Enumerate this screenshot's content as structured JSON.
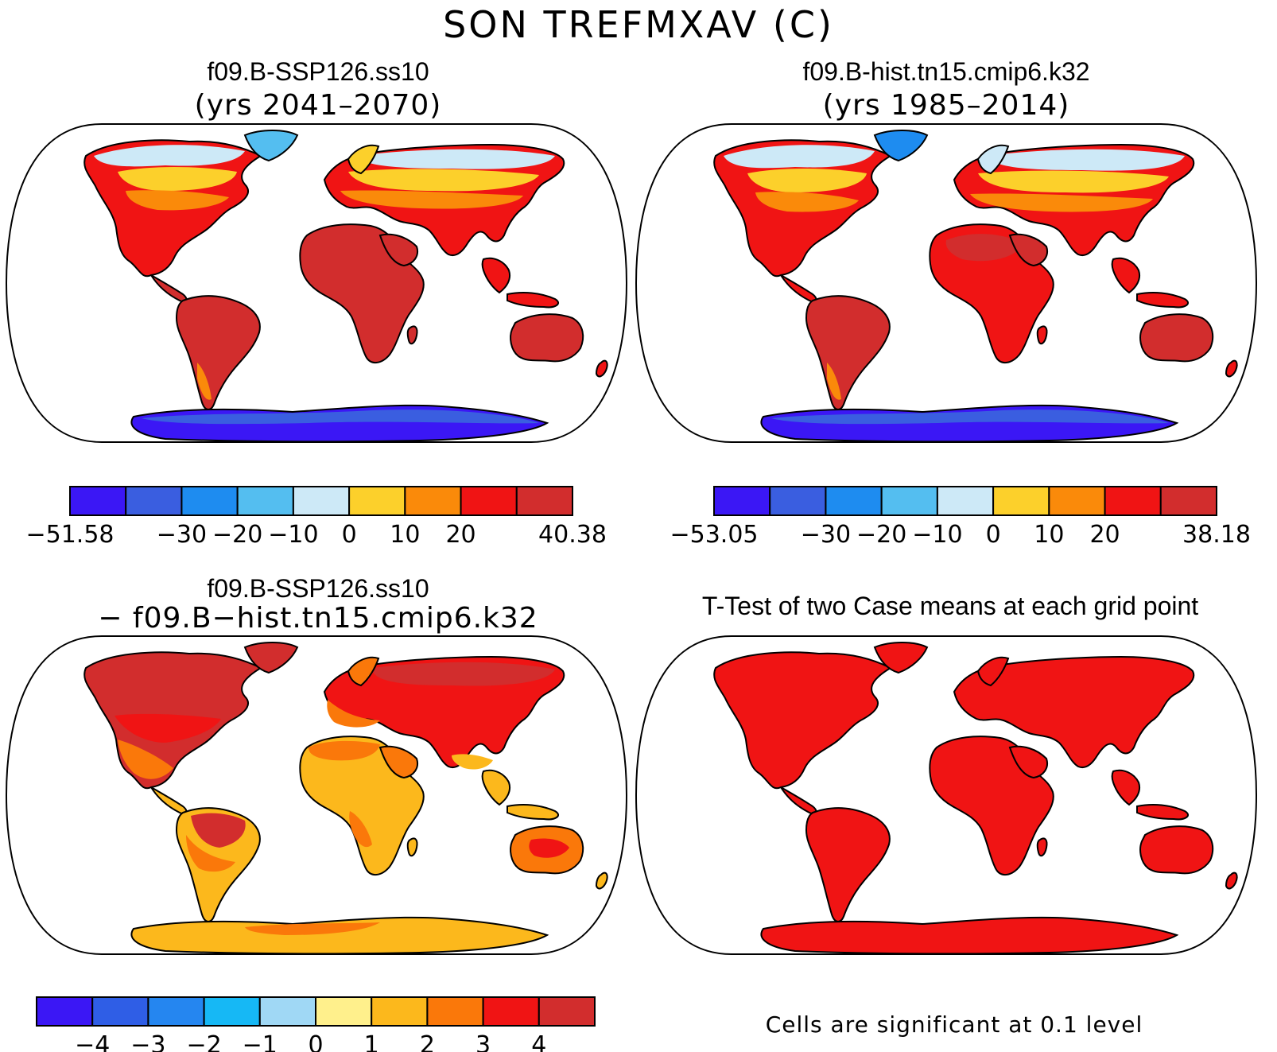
{
  "title": "SON TREFMXAV (C)",
  "panels": [
    {
      "id": "p1",
      "case": "f09.B-SSP126.ss10",
      "period": "(yrs 2041–2070)",
      "colorbar": {
        "colors": [
          "#3b17f5",
          "#3a5ee0",
          "#1e8cf0",
          "#54bef0",
          "#cde9f7",
          "#fcd02b",
          "#fa8a0a",
          "#f01414",
          "#d22d2d"
        ],
        "labels": [
          "−51.58",
          "−30",
          "−20",
          "−10",
          "0",
          "10",
          "20",
          "40.38"
        ]
      }
    },
    {
      "id": "p2",
      "case": "f09.B-hist.tn15.cmip6.k32",
      "period": "(yrs 1985–2014)",
      "colorbar": {
        "colors": [
          "#3b17f5",
          "#3a5ee0",
          "#1e8cf0",
          "#54bef0",
          "#cde9f7",
          "#fcd02b",
          "#fa8a0a",
          "#f01414",
          "#d22d2d"
        ],
        "labels": [
          "−53.05",
          "−30",
          "−20",
          "−10",
          "0",
          "10",
          "20",
          "38.18"
        ]
      }
    },
    {
      "id": "p3",
      "case": "f09.B-SSP126.ss10",
      "period": "− f09.B−hist.tn15.cmip6.k32",
      "colorbar": {
        "colors": [
          "#3b17f5",
          "#2f5ee6",
          "#2586f0",
          "#16b8f5",
          "#a0d8f5",
          "#fff08c",
          "#fcb81c",
          "#fa780a",
          "#f01414",
          "#d22d2d"
        ],
        "labels": [
          "−4",
          "−3",
          "−2",
          "−1",
          "0",
          "1",
          "2",
          "3",
          "4"
        ]
      }
    },
    {
      "id": "p4",
      "title": "T-Test of two Case means at each grid point",
      "note": "Cells are significant at 0.1 level"
    }
  ]
}
